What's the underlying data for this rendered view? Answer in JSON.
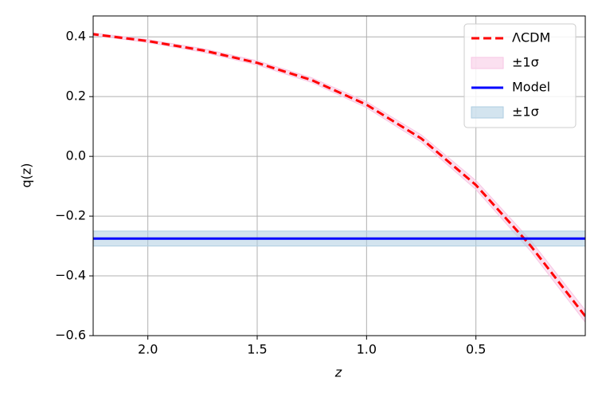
{
  "chart_data": {
    "type": "line",
    "xlabel": "z",
    "ylabel": "q(z)",
    "x": [
      0,
      0.25,
      0.5,
      0.75,
      1.0,
      1.25,
      1.5,
      1.75,
      2.0,
      2.25
    ],
    "series": [
      {
        "name": "ΛCDM",
        "color": "#ff0000",
        "style": "dashed",
        "values": [
          -0.535,
          -0.299,
          -0.096,
          0.06,
          0.173,
          0.255,
          0.313,
          0.355,
          0.386,
          0.409
        ]
      },
      {
        "name": "±1σ",
        "color": "#f7c6e4",
        "kind": "band",
        "lower": [
          -0.555,
          -0.317,
          -0.111,
          0.048,
          0.163,
          0.247,
          0.306,
          0.349,
          0.381,
          0.405
        ],
        "upper": [
          -0.515,
          -0.281,
          -0.081,
          0.072,
          0.183,
          0.263,
          0.32,
          0.361,
          0.391,
          0.413
        ]
      },
      {
        "name": "Model",
        "color": "#0000ff",
        "style": "solid",
        "values": [
          -0.275,
          -0.275,
          -0.275,
          -0.275,
          -0.275,
          -0.275,
          -0.275,
          -0.275,
          -0.275,
          -0.275
        ]
      },
      {
        "name": "±1σ",
        "color": "#aecde1",
        "kind": "band",
        "lower": [
          -0.3,
          -0.3,
          -0.3,
          -0.3,
          -0.3,
          -0.3,
          -0.3,
          -0.3,
          -0.3,
          -0.3
        ],
        "upper": [
          -0.25,
          -0.25,
          -0.25,
          -0.25,
          -0.25,
          -0.25,
          -0.25,
          -0.25,
          -0.25,
          -0.25
        ]
      }
    ],
    "xlim": [
      2.25,
      0
    ],
    "xticks": [
      {
        "value": 2.0,
        "label": "2.0"
      },
      1.5,
      {
        "value": 1.0,
        "label": "1.0"
      },
      0.5
    ],
    "ylim": [
      -0.6,
      0.47
    ],
    "yticks": [
      {
        "value": -0.6,
        "label": "−0.6"
      },
      {
        "value": -0.4,
        "label": "−0.4"
      },
      {
        "value": -0.2,
        "label": "−0.2"
      },
      {
        "value": 0.0,
        "label": "0.0"
      },
      0.2,
      0.4
    ],
    "grid": true,
    "legend": "upper right"
  }
}
